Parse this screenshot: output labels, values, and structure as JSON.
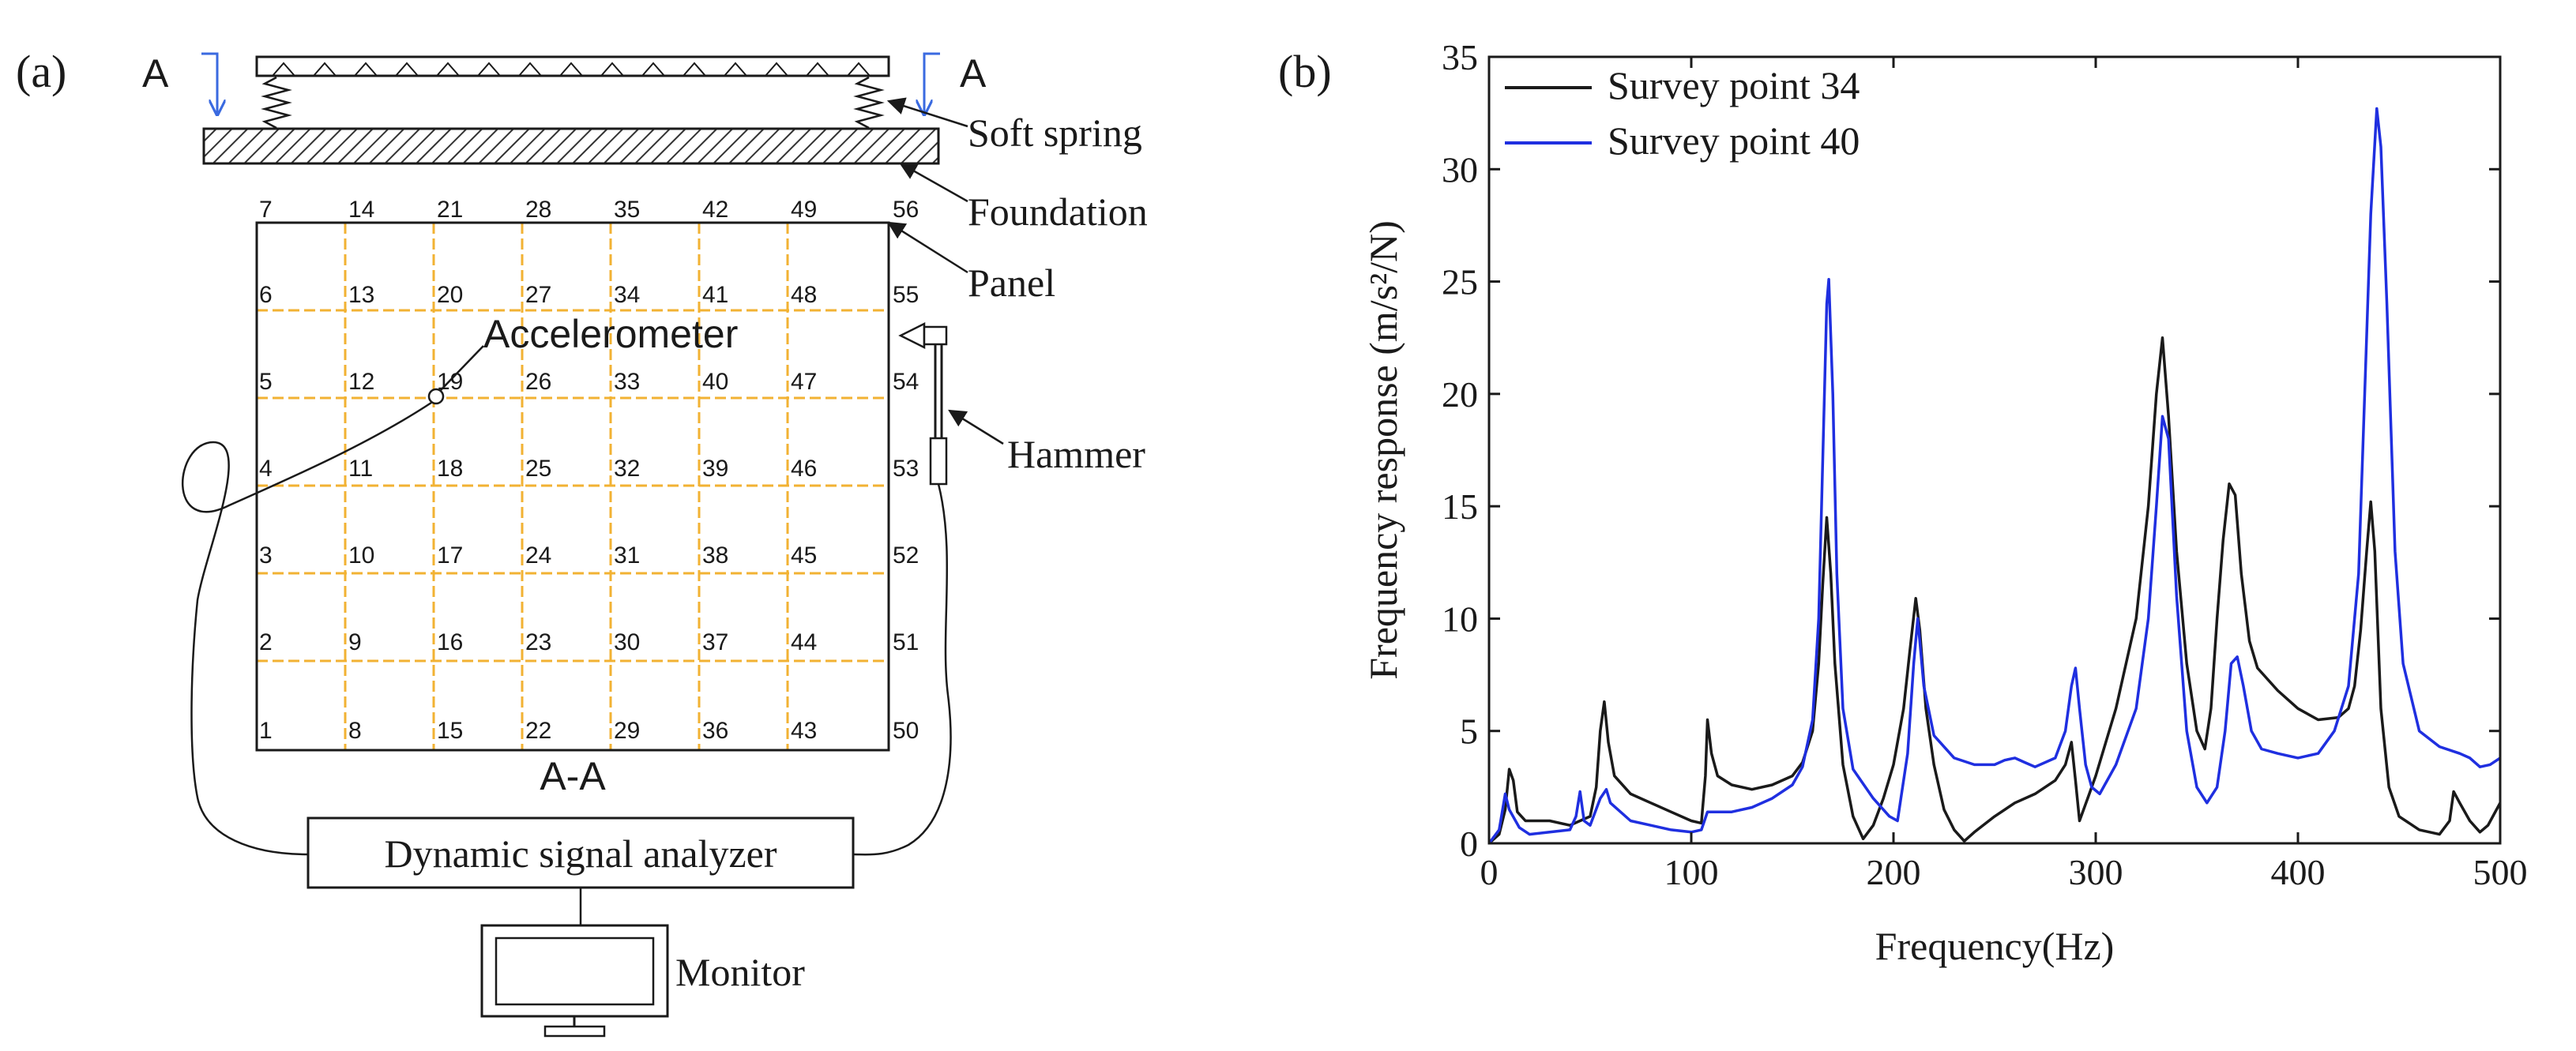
{
  "panel_a": {
    "letter": "(a)",
    "section_left": "A",
    "section_right": "A",
    "soft_spring": "Soft spring",
    "foundation": "Foundation",
    "panel": "Panel",
    "accelerometer": "Accelerometer",
    "hammer": "Hammer",
    "section_title": "A-A",
    "analyzer": "Dynamic signal analyzer",
    "monitor": "Monitor",
    "grid_numbers": [
      [
        "7",
        "14",
        "21",
        "28",
        "35",
        "42",
        "49",
        "56"
      ],
      [
        "6",
        "13",
        "20",
        "27",
        "34",
        "41",
        "48",
        "55"
      ],
      [
        "5",
        "12",
        "19",
        "26",
        "33",
        "40",
        "47",
        "54"
      ],
      [
        "4",
        "11",
        "18",
        "25",
        "32",
        "39",
        "46",
        "53"
      ],
      [
        "3",
        "10",
        "17",
        "24",
        "31",
        "38",
        "45",
        "52"
      ],
      [
        "2",
        "9",
        "16",
        "23",
        "30",
        "37",
        "44",
        "51"
      ],
      [
        "1",
        "8",
        "15",
        "22",
        "29",
        "36",
        "43",
        "50"
      ]
    ],
    "colors": {
      "grid": "#f2b233",
      "section_arrow": "#3a6ae0",
      "line": "#1a1a1a"
    }
  },
  "panel_b": {
    "letter": "(b)",
    "chart_data": {
      "type": "line",
      "xlabel": "Frequency(Hz)",
      "ylabel": "Frequency response (m/s²/N)",
      "xlim": [
        0,
        500
      ],
      "ylim": [
        0,
        35
      ],
      "xticks": [
        "0",
        "100",
        "200",
        "300",
        "400",
        "500"
      ],
      "yticks": [
        "0",
        "5",
        "10",
        "15",
        "20",
        "25",
        "30",
        "35"
      ],
      "legend_position": "top-left",
      "series": [
        {
          "name": "Survey point 34",
          "color": "#1a1a1a",
          "points": [
            [
              0,
              0
            ],
            [
              5,
              0.4
            ],
            [
              8,
              1.5
            ],
            [
              10,
              3.3
            ],
            [
              12,
              2.8
            ],
            [
              14,
              1.4
            ],
            [
              18,
              1.0
            ],
            [
              30,
              1.0
            ],
            [
              40,
              0.8
            ],
            [
              45,
              1.0
            ],
            [
              50,
              1.2
            ],
            [
              53,
              2.5
            ],
            [
              55,
              5.0
            ],
            [
              57,
              6.3
            ],
            [
              59,
              4.5
            ],
            [
              62,
              3.0
            ],
            [
              70,
              2.2
            ],
            [
              80,
              1.8
            ],
            [
              90,
              1.4
            ],
            [
              100,
              1.0
            ],
            [
              105,
              0.9
            ],
            [
              107,
              3.0
            ],
            [
              108,
              5.5
            ],
            [
              110,
              4.0
            ],
            [
              113,
              3.0
            ],
            [
              120,
              2.6
            ],
            [
              130,
              2.4
            ],
            [
              140,
              2.6
            ],
            [
              150,
              3.0
            ],
            [
              155,
              3.6
            ],
            [
              160,
              5.0
            ],
            [
              163,
              8.0
            ],
            [
              165,
              11.5
            ],
            [
              167,
              14.5
            ],
            [
              169,
              12.0
            ],
            [
              171,
              8.0
            ],
            [
              175,
              3.5
            ],
            [
              180,
              1.2
            ],
            [
              185,
              0.2
            ],
            [
              190,
              0.8
            ],
            [
              195,
              2.0
            ],
            [
              200,
              3.5
            ],
            [
              205,
              6.0
            ],
            [
              208,
              8.5
            ],
            [
              211,
              10.9
            ],
            [
              213,
              9.5
            ],
            [
              216,
              6.0
            ],
            [
              220,
              3.5
            ],
            [
              225,
              1.5
            ],
            [
              230,
              0.6
            ],
            [
              235,
              0.1
            ],
            [
              240,
              0.5
            ],
            [
              250,
              1.2
            ],
            [
              260,
              1.8
            ],
            [
              270,
              2.2
            ],
            [
              280,
              2.8
            ],
            [
              285,
              3.5
            ],
            [
              288,
              4.5
            ],
            [
              290,
              2.8
            ],
            [
              292,
              1.0
            ],
            [
              296,
              2.0
            ],
            [
              300,
              3.0
            ],
            [
              310,
              6.0
            ],
            [
              320,
              10.0
            ],
            [
              326,
              15.0
            ],
            [
              330,
              20.0
            ],
            [
              333,
              22.5
            ],
            [
              336,
              19.0
            ],
            [
              340,
              13.0
            ],
            [
              345,
              8.0
            ],
            [
              350,
              5.0
            ],
            [
              354,
              4.2
            ],
            [
              357,
              6.0
            ],
            [
              360,
              10.0
            ],
            [
              363,
              13.5
            ],
            [
              366,
              16.0
            ],
            [
              369,
              15.5
            ],
            [
              372,
              12.0
            ],
            [
              376,
              9.0
            ],
            [
              380,
              7.8
            ],
            [
              390,
              6.8
            ],
            [
              400,
              6.0
            ],
            [
              410,
              5.5
            ],
            [
              420,
              5.6
            ],
            [
              425,
              6.0
            ],
            [
              428,
              7.0
            ],
            [
              431,
              9.5
            ],
            [
              434,
              13.0
            ],
            [
              436,
              15.2
            ],
            [
              438,
              13.0
            ],
            [
              441,
              6.0
            ],
            [
              445,
              2.5
            ],
            [
              450,
              1.2
            ],
            [
              460,
              0.6
            ],
            [
              470,
              0.4
            ],
            [
              475,
              1.0
            ],
            [
              477,
              2.3
            ],
            [
              480,
              1.8
            ],
            [
              485,
              1.0
            ],
            [
              490,
              0.5
            ],
            [
              494,
              0.8
            ],
            [
              497,
              1.3
            ],
            [
              500,
              1.8
            ]
          ]
        },
        {
          "name": "Survey point 40",
          "color": "#1f2fe0",
          "points": [
            [
              0,
              0
            ],
            [
              5,
              0.6
            ],
            [
              8,
              2.2
            ],
            [
              10,
              1.5
            ],
            [
              15,
              0.7
            ],
            [
              20,
              0.4
            ],
            [
              30,
              0.5
            ],
            [
              40,
              0.6
            ],
            [
              43,
              1.2
            ],
            [
              45,
              2.3
            ],
            [
              47,
              1.0
            ],
            [
              50,
              0.8
            ],
            [
              55,
              2.0
            ],
            [
              58,
              2.4
            ],
            [
              60,
              1.8
            ],
            [
              70,
              1.0
            ],
            [
              80,
              0.8
            ],
            [
              90,
              0.6
            ],
            [
              100,
              0.5
            ],
            [
              105,
              0.6
            ],
            [
              108,
              1.4
            ],
            [
              120,
              1.4
            ],
            [
              130,
              1.6
            ],
            [
              140,
              2.0
            ],
            [
              150,
              2.6
            ],
            [
              155,
              3.4
            ],
            [
              160,
              5.5
            ],
            [
              163,
              10.0
            ],
            [
              165,
              17.0
            ],
            [
              167,
              24.0
            ],
            [
              168,
              25.1
            ],
            [
              170,
              20.0
            ],
            [
              172,
              12.0
            ],
            [
              175,
              6.0
            ],
            [
              180,
              3.3
            ],
            [
              190,
              2.0
            ],
            [
              198,
              1.2
            ],
            [
              202,
              1.0
            ],
            [
              207,
              4.0
            ],
            [
              210,
              8.0
            ],
            [
              212,
              10.0
            ],
            [
              215,
              7.0
            ],
            [
              220,
              4.8
            ],
            [
              230,
              3.8
            ],
            [
              240,
              3.5
            ],
            [
              250,
              3.5
            ],
            [
              255,
              3.7
            ],
            [
              260,
              3.8
            ],
            [
              265,
              3.6
            ],
            [
              270,
              3.4
            ],
            [
              280,
              3.8
            ],
            [
              285,
              5.0
            ],
            [
              288,
              7.0
            ],
            [
              290,
              7.8
            ],
            [
              292,
              6.0
            ],
            [
              295,
              3.5
            ],
            [
              298,
              2.5
            ],
            [
              302,
              2.2
            ],
            [
              310,
              3.5
            ],
            [
              320,
              6.0
            ],
            [
              326,
              10.0
            ],
            [
              330,
              15.0
            ],
            [
              333,
              19.0
            ],
            [
              336,
              18.0
            ],
            [
              340,
              11.0
            ],
            [
              345,
              5.0
            ],
            [
              350,
              2.5
            ],
            [
              355,
              1.8
            ],
            [
              360,
              2.5
            ],
            [
              364,
              5.0
            ],
            [
              367,
              8.0
            ],
            [
              370,
              8.3
            ],
            [
              373,
              7.0
            ],
            [
              377,
              5.0
            ],
            [
              382,
              4.2
            ],
            [
              390,
              4.0
            ],
            [
              400,
              3.8
            ],
            [
              410,
              4.0
            ],
            [
              418,
              5.0
            ],
            [
              425,
              7.0
            ],
            [
              430,
              12.0
            ],
            [
              433,
              20.0
            ],
            [
              436,
              28.0
            ],
            [
              439,
              32.7
            ],
            [
              441,
              31.0
            ],
            [
              444,
              24.0
            ],
            [
              448,
              13.0
            ],
            [
              452,
              8.0
            ],
            [
              460,
              5.0
            ],
            [
              470,
              4.3
            ],
            [
              480,
              4.0
            ],
            [
              485,
              3.8
            ],
            [
              490,
              3.4
            ],
            [
              495,
              3.5
            ],
            [
              500,
              3.8
            ]
          ]
        }
      ]
    }
  }
}
